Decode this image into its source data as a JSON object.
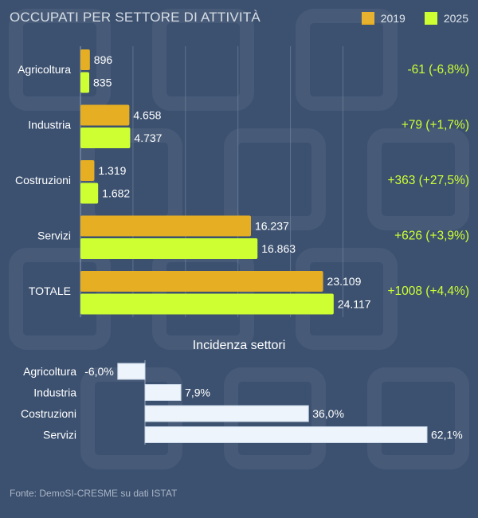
{
  "title": "OCCUPATI PER SETTORE DI ATTIVITÀ",
  "source": "Fonte: DemoSI-CRESME su dati ISTAT",
  "colors": {
    "background": "#3c5170",
    "series_2019": "#e6ae22",
    "series_2025": "#cdff33",
    "delta_text": "#cdff33",
    "share_bar": "#eef4fc"
  },
  "chart_data": [
    {
      "type": "bar",
      "orientation": "horizontal",
      "title": "OCCUPATI PER SETTORE DI ATTIVITÀ",
      "categories": [
        "Agricoltura",
        "Industria",
        "Costruzioni",
        "Servizi",
        "TOTALE"
      ],
      "series": [
        {
          "name": "2019",
          "values": [
            896,
            4658,
            1319,
            16237,
            23109
          ],
          "labels": [
            "896",
            "4.658",
            "1.319",
            "16.237",
            "23.109"
          ]
        },
        {
          "name": "2025",
          "values": [
            835,
            4737,
            1682,
            16863,
            24117
          ],
          "labels": [
            "835",
            "4.737",
            "1.682",
            "16.863",
            "24.117"
          ]
        }
      ],
      "annotations": [
        "-61 (-6,8%)",
        "+79 (+1,7%)",
        "+363 (+27,5%)",
        "+626 (+3,9%)",
        "+1008 (+4,4%)"
      ],
      "xlim": [
        0,
        28000
      ],
      "grid": true,
      "legend": "top-right"
    },
    {
      "type": "bar",
      "orientation": "horizontal",
      "title": "Incidenza settori",
      "categories": [
        "Agricoltura",
        "Industria",
        "Costruzioni",
        "Servizi"
      ],
      "values": [
        -6.0,
        7.9,
        36.0,
        62.1
      ],
      "labels": [
        "-6,0%",
        "7,9%",
        "36,0%",
        "62,1%"
      ],
      "xlim": [
        -6,
        62.1
      ],
      "grid": false
    }
  ]
}
